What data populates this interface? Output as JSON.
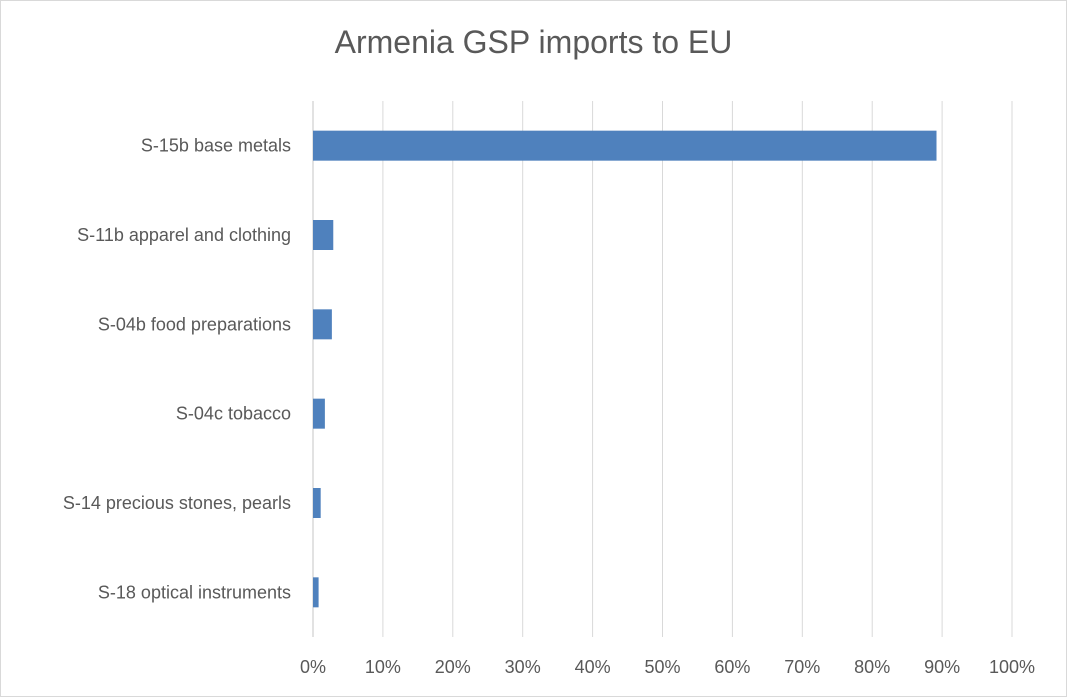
{
  "chart_data": {
    "type": "bar",
    "orientation": "horizontal",
    "title": "Armenia GSP imports to EU",
    "xlabel": "",
    "ylabel": "",
    "categories": [
      "S-15b base metals",
      "S-11b apparel and clothing",
      "S-04b food preparations",
      "S-04c tobacco",
      "S-14 precious stones, pearls",
      "S-18 optical instruments"
    ],
    "values": [
      0.892,
      0.029,
      0.027,
      0.017,
      0.011,
      0.008
    ],
    "xlim": [
      0,
      1
    ],
    "x_ticks": [
      "0%",
      "10%",
      "20%",
      "30%",
      "40%",
      "50%",
      "60%",
      "70%",
      "80%",
      "90%",
      "100%"
    ],
    "grid": "vertical",
    "legend": "none",
    "colors": {
      "bar": "#4f81bd",
      "grid": "#d9d9d9",
      "text": "#595959"
    }
  }
}
